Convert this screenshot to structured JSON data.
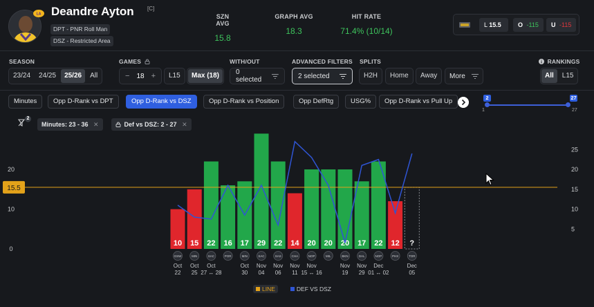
{
  "player": {
    "name": "Deandre Ayton",
    "captain_mark": "[C]",
    "tags": [
      "DPT - PNR Roll Man",
      "DSZ - Restricted Area"
    ]
  },
  "stats": {
    "szn_avg_label": "SZN AVG",
    "szn_avg": "15.8",
    "graph_avg_label": "GRAPH AVG",
    "graph_avg": "18.3",
    "hit_rate_label": "HIT RATE",
    "hit_rate": "71.4% (10/14)"
  },
  "odds": {
    "line_label": "L",
    "line": "15.5",
    "over_label": "O",
    "over": "-115",
    "under_label": "U",
    "under": "-115"
  },
  "filters": {
    "season_label": "SEASON",
    "seasons": [
      "23/24",
      "24/25",
      "25/26",
      "All"
    ],
    "games_label": "GAMES",
    "games_minus": "−",
    "games_value": "18",
    "games_plus": "+",
    "games_l15": "L15",
    "games_max": "Max (18)",
    "without_label": "WITH/OUT",
    "without_value": "0 selected",
    "advanced_label": "ADVANCED FILTERS",
    "advanced_value": "2 selected",
    "splits_label": "SPLITS",
    "splits": [
      "H2H",
      "Home",
      "Away",
      "More"
    ],
    "rankings_label": "RANKINGS",
    "rankings": [
      "All",
      "L15"
    ]
  },
  "chips": [
    "Minutes",
    "Opp D-Rank vs DPT",
    "Opp D-Rank vs DSZ",
    "Opp D-Rank vs Position",
    "Opp DefRtg",
    "USG%",
    "Opp D-Rank vs Pull Up"
  ],
  "range_slider": {
    "low": "2",
    "high": "27",
    "min": "1",
    "max": "27"
  },
  "active_filters": {
    "count": "2",
    "minutes": "Minutes: 23 - 36",
    "def": "Def vs DSZ: 2 - 27"
  },
  "legend": {
    "line": "LINE",
    "def": "DEF VS DSZ"
  },
  "colors": {
    "hit": "#22a74a",
    "miss": "#e0262c",
    "line": "#e3a21a",
    "def": "#2f55d4",
    "accent": "#2f5fe0"
  },
  "chart_data": {
    "type": "bar",
    "title": "",
    "line_value": 15.5,
    "line_label": "15.5",
    "left_axis": {
      "range": [
        0,
        30
      ],
      "ticks": [
        0,
        10,
        20
      ]
    },
    "right_axis": {
      "range": [
        0,
        30
      ],
      "ticks": [
        5,
        10,
        15,
        20,
        25
      ]
    },
    "games": [
      {
        "value": 10,
        "label": "10",
        "date_top": "Oct",
        "date_bottom": "22",
        "team": "GSW"
      },
      {
        "value": 15,
        "label": "15",
        "date_top": "Oct",
        "date_bottom": "25",
        "team": "MIN"
      },
      {
        "value": 22,
        "label": "22",
        "date_top": "Oct",
        "date_bottom": "27 ↔ 28",
        "team": "SAC"
      },
      {
        "value": 16,
        "label": "16",
        "date_top": "",
        "date_bottom": "",
        "team": "POR"
      },
      {
        "value": 17,
        "label": "17",
        "date_top": "Oct",
        "date_bottom": "30",
        "team": "MIN"
      },
      {
        "value": 29,
        "label": "29",
        "date_top": "Nov",
        "date_bottom": "04",
        "team": "SAC"
      },
      {
        "value": 22,
        "label": "22",
        "date_top": "Nov",
        "date_bottom": "06",
        "team": "SAS"
      },
      {
        "value": 14,
        "label": "14",
        "date_top": "Nov",
        "date_bottom": "11",
        "team": "CHA"
      },
      {
        "value": 20,
        "label": "20",
        "date_top": "Nov",
        "date_bottom": "15 ↔ 16",
        "team": "NOP"
      },
      {
        "value": 20,
        "label": "20",
        "date_top": "",
        "date_bottom": "",
        "team": "MIL"
      },
      {
        "value": 20,
        "label": "20",
        "date_top": "Nov",
        "date_bottom": "19",
        "team": "BKN"
      },
      {
        "value": 17,
        "label": "17",
        "date_top": "Nov",
        "date_bottom": "29",
        "team": "DAL"
      },
      {
        "value": 22,
        "label": "22",
        "date_top": "Dec",
        "date_bottom": "01 ↔ 02",
        "team": "NOP"
      },
      {
        "value": 12,
        "label": "12",
        "date_top": "",
        "date_bottom": "",
        "team": "PHX"
      },
      {
        "value": null,
        "label": "?",
        "date_top": "Dec",
        "date_bottom": "05",
        "team": "TOR"
      }
    ],
    "def_series": {
      "name": "DEF VS DSZ",
      "values": [
        11,
        8,
        7.5,
        16,
        8.5,
        16,
        6,
        27,
        23,
        16,
        1.5,
        21,
        22.5,
        9,
        24
      ]
    }
  }
}
